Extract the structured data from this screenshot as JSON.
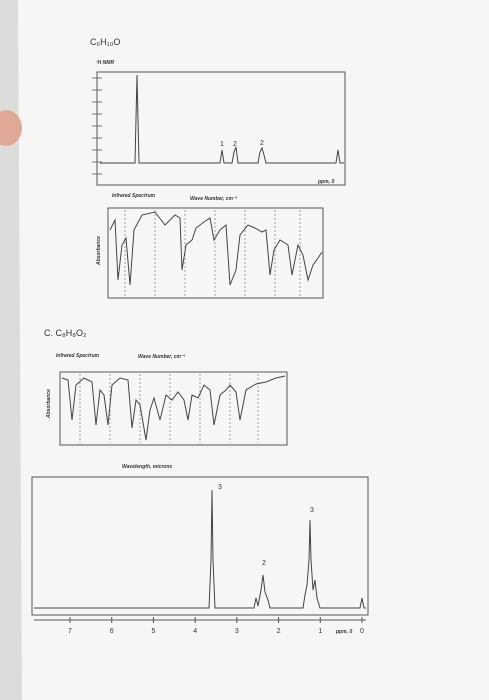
{
  "problem_b": {
    "formula": "C₆H₁₀O",
    "nmr": {
      "label": "¹H NMR",
      "integrations": [
        "1",
        "2",
        "2"
      ],
      "axis_label": "ppm, δ"
    },
    "ir": {
      "title": "Infrared Spectrum",
      "top_axis": "Wave Number, cm⁻¹",
      "y_label": "Absorbance"
    }
  },
  "problem_c": {
    "formula": "C. C₈H₈O₂",
    "ir": {
      "title": "Infrared Spectrum",
      "top_axis": "Wave Number, cm⁻¹",
      "y_label": "Absorbance",
      "bottom_axis": "Wavelength, microns"
    },
    "nmr": {
      "integrations": [
        "3",
        "2",
        "3"
      ],
      "axis_label": "ppm, δ",
      "ticks": [
        "7",
        "6",
        "5",
        "4",
        "3",
        "2",
        "1",
        "0"
      ]
    }
  }
}
